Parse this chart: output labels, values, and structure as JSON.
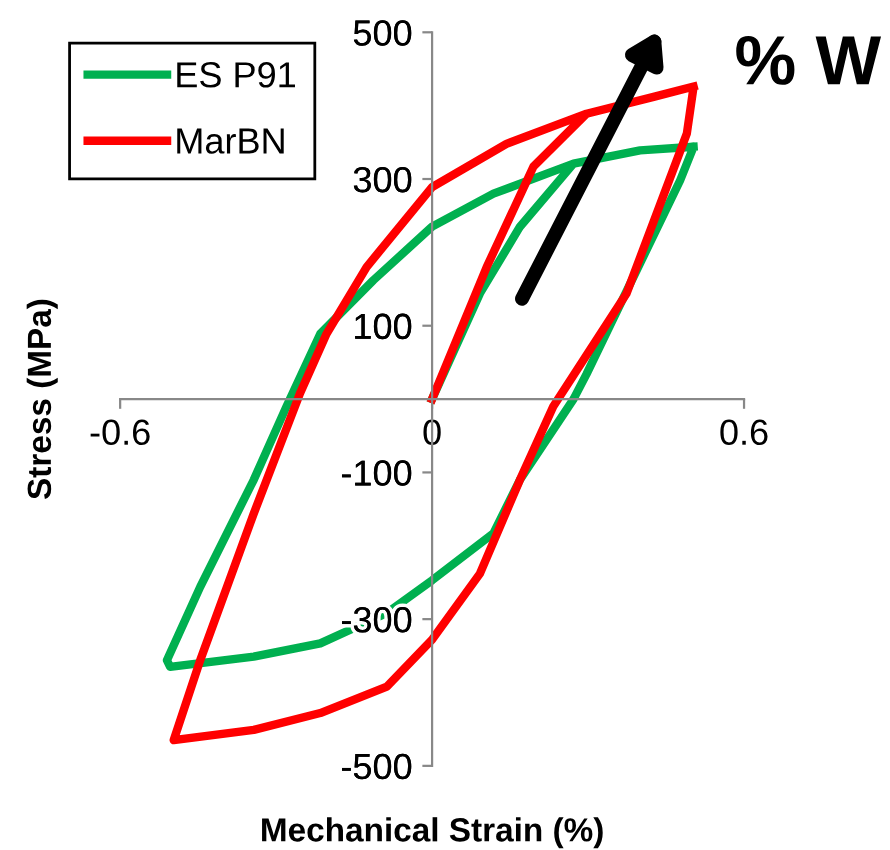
{
  "chart_data": {
    "type": "line",
    "xlabel": "Mechanical Strain (%)",
    "ylabel": "Stress (MPa)",
    "xlim": [
      -0.6,
      0.6
    ],
    "xticks": [
      -0.6,
      0,
      0.6
    ],
    "ylim": [
      -500,
      500
    ],
    "yticks": [
      -500,
      -300,
      -100,
      100,
      300,
      500
    ],
    "grid": false,
    "legend": "top left",
    "marker": "none",
    "line_style": "solid",
    "series": [
      {
        "name": "ES P91",
        "color": "#00b050",
        "x": [
          0,
          0.092,
          0.169,
          0.272,
          0.4,
          0.503,
          0.477,
          0.297,
          0.272,
          0.169,
          0.118,
          0,
          -0.088,
          -0.215,
          -0.343,
          -0.504,
          -0.51,
          -0.446,
          -0.343,
          -0.28,
          -0.215,
          -0.113,
          0,
          0.118,
          0.272,
          0.4,
          0.503
        ],
        "values": [
          0,
          144,
          235,
          321,
          339,
          344,
          298,
          34,
          0,
          -110,
          -183,
          -247,
          -292,
          -333,
          -351,
          -365,
          -356,
          -256,
          -110,
          -10,
          89,
          162,
          235,
          280,
          321,
          339,
          344
        ]
      },
      {
        "name": "MarBN",
        "color": "#ff0000",
        "x": [
          0,
          0.105,
          0.195,
          0.297,
          0.426,
          0.503,
          0.49,
          0.374,
          0.233,
          0.169,
          0.092,
          0,
          -0.087,
          -0.215,
          -0.343,
          -0.497,
          -0.446,
          -0.343,
          -0.254,
          -0.203,
          -0.126,
          0,
          0.143,
          0.297,
          0.426,
          0.503
        ],
        "values": [
          0,
          180,
          317,
          389,
          412,
          426,
          362,
          144,
          -10,
          -110,
          -238,
          -328,
          -392,
          -428,
          -451,
          -465,
          -356,
          -156,
          8,
          89,
          180,
          289,
          348,
          389,
          412,
          426
        ]
      }
    ],
    "annotations": [
      "% W"
    ]
  }
}
